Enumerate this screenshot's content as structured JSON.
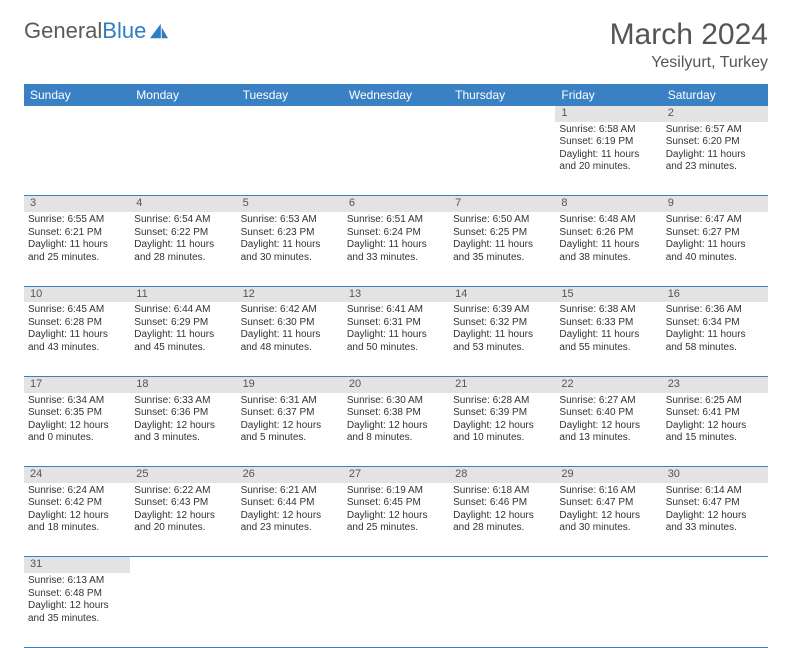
{
  "logo": {
    "text1": "General",
    "text2": "Blue",
    "icon_color": "#2f7cc4"
  },
  "header": {
    "month": "March 2024",
    "location": "Yesilyurt, Turkey"
  },
  "colors": {
    "band": "#3a81c4",
    "daynum_bg": "#e3e3e3",
    "text": "#333333"
  },
  "weekdays": [
    "Sunday",
    "Monday",
    "Tuesday",
    "Wednesday",
    "Thursday",
    "Friday",
    "Saturday"
  ],
  "weeks": [
    {
      "nums": [
        "",
        "",
        "",
        "",
        "",
        "1",
        "2"
      ],
      "cells": [
        "",
        "",
        "",
        "",
        "",
        "Sunrise: 6:58 AM\nSunset: 6:19 PM\nDaylight: 11 hours and 20 minutes.",
        "Sunrise: 6:57 AM\nSunset: 6:20 PM\nDaylight: 11 hours and 23 minutes."
      ]
    },
    {
      "nums": [
        "3",
        "4",
        "5",
        "6",
        "7",
        "8",
        "9"
      ],
      "cells": [
        "Sunrise: 6:55 AM\nSunset: 6:21 PM\nDaylight: 11 hours and 25 minutes.",
        "Sunrise: 6:54 AM\nSunset: 6:22 PM\nDaylight: 11 hours and 28 minutes.",
        "Sunrise: 6:53 AM\nSunset: 6:23 PM\nDaylight: 11 hours and 30 minutes.",
        "Sunrise: 6:51 AM\nSunset: 6:24 PM\nDaylight: 11 hours and 33 minutes.",
        "Sunrise: 6:50 AM\nSunset: 6:25 PM\nDaylight: 11 hours and 35 minutes.",
        "Sunrise: 6:48 AM\nSunset: 6:26 PM\nDaylight: 11 hours and 38 minutes.",
        "Sunrise: 6:47 AM\nSunset: 6:27 PM\nDaylight: 11 hours and 40 minutes."
      ]
    },
    {
      "nums": [
        "10",
        "11",
        "12",
        "13",
        "14",
        "15",
        "16"
      ],
      "cells": [
        "Sunrise: 6:45 AM\nSunset: 6:28 PM\nDaylight: 11 hours and 43 minutes.",
        "Sunrise: 6:44 AM\nSunset: 6:29 PM\nDaylight: 11 hours and 45 minutes.",
        "Sunrise: 6:42 AM\nSunset: 6:30 PM\nDaylight: 11 hours and 48 minutes.",
        "Sunrise: 6:41 AM\nSunset: 6:31 PM\nDaylight: 11 hours and 50 minutes.",
        "Sunrise: 6:39 AM\nSunset: 6:32 PM\nDaylight: 11 hours and 53 minutes.",
        "Sunrise: 6:38 AM\nSunset: 6:33 PM\nDaylight: 11 hours and 55 minutes.",
        "Sunrise: 6:36 AM\nSunset: 6:34 PM\nDaylight: 11 hours and 58 minutes."
      ]
    },
    {
      "nums": [
        "17",
        "18",
        "19",
        "20",
        "21",
        "22",
        "23"
      ],
      "cells": [
        "Sunrise: 6:34 AM\nSunset: 6:35 PM\nDaylight: 12 hours and 0 minutes.",
        "Sunrise: 6:33 AM\nSunset: 6:36 PM\nDaylight: 12 hours and 3 minutes.",
        "Sunrise: 6:31 AM\nSunset: 6:37 PM\nDaylight: 12 hours and 5 minutes.",
        "Sunrise: 6:30 AM\nSunset: 6:38 PM\nDaylight: 12 hours and 8 minutes.",
        "Sunrise: 6:28 AM\nSunset: 6:39 PM\nDaylight: 12 hours and 10 minutes.",
        "Sunrise: 6:27 AM\nSunset: 6:40 PM\nDaylight: 12 hours and 13 minutes.",
        "Sunrise: 6:25 AM\nSunset: 6:41 PM\nDaylight: 12 hours and 15 minutes."
      ]
    },
    {
      "nums": [
        "24",
        "25",
        "26",
        "27",
        "28",
        "29",
        "30"
      ],
      "cells": [
        "Sunrise: 6:24 AM\nSunset: 6:42 PM\nDaylight: 12 hours and 18 minutes.",
        "Sunrise: 6:22 AM\nSunset: 6:43 PM\nDaylight: 12 hours and 20 minutes.",
        "Sunrise: 6:21 AM\nSunset: 6:44 PM\nDaylight: 12 hours and 23 minutes.",
        "Sunrise: 6:19 AM\nSunset: 6:45 PM\nDaylight: 12 hours and 25 minutes.",
        "Sunrise: 6:18 AM\nSunset: 6:46 PM\nDaylight: 12 hours and 28 minutes.",
        "Sunrise: 6:16 AM\nSunset: 6:47 PM\nDaylight: 12 hours and 30 minutes.",
        "Sunrise: 6:14 AM\nSunset: 6:47 PM\nDaylight: 12 hours and 33 minutes."
      ]
    },
    {
      "nums": [
        "31",
        "",
        "",
        "",
        "",
        "",
        ""
      ],
      "cells": [
        "Sunrise: 6:13 AM\nSunset: 6:48 PM\nDaylight: 12 hours and 35 minutes.",
        "",
        "",
        "",
        "",
        "",
        ""
      ]
    }
  ]
}
